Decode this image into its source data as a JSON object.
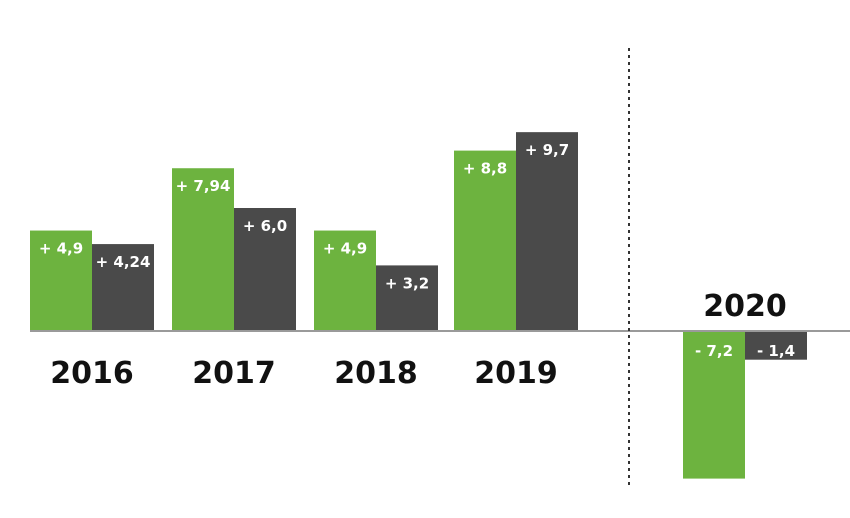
{
  "chart_data": {
    "type": "bar",
    "categories": [
      "2016",
      "2017",
      "2018",
      "2019",
      "2020"
    ],
    "series": [
      {
        "name": "series-green",
        "color": "#6db33f",
        "values": [
          4.9,
          7.94,
          4.9,
          8.8,
          -7.2
        ],
        "labels": [
          "+ 4,9",
          "+ 7,94",
          "+ 4,9",
          "+ 8,8",
          "- 7,2"
        ]
      },
      {
        "name": "series-dark",
        "color": "#4a4a4a",
        "values": [
          4.24,
          6.0,
          3.2,
          9.7,
          -1.4
        ],
        "labels": [
          "+ 4,24",
          "+ 6,0",
          "+ 3,2",
          "+ 9,7",
          "- 1,4"
        ]
      }
    ],
    "title": "",
    "xlabel": "",
    "ylabel": "",
    "ylim": [
      -7.2,
      9.7
    ],
    "grid": false,
    "legend": "none",
    "annotations": [
      "dotted vertical separator between 2019 and 2020"
    ]
  }
}
